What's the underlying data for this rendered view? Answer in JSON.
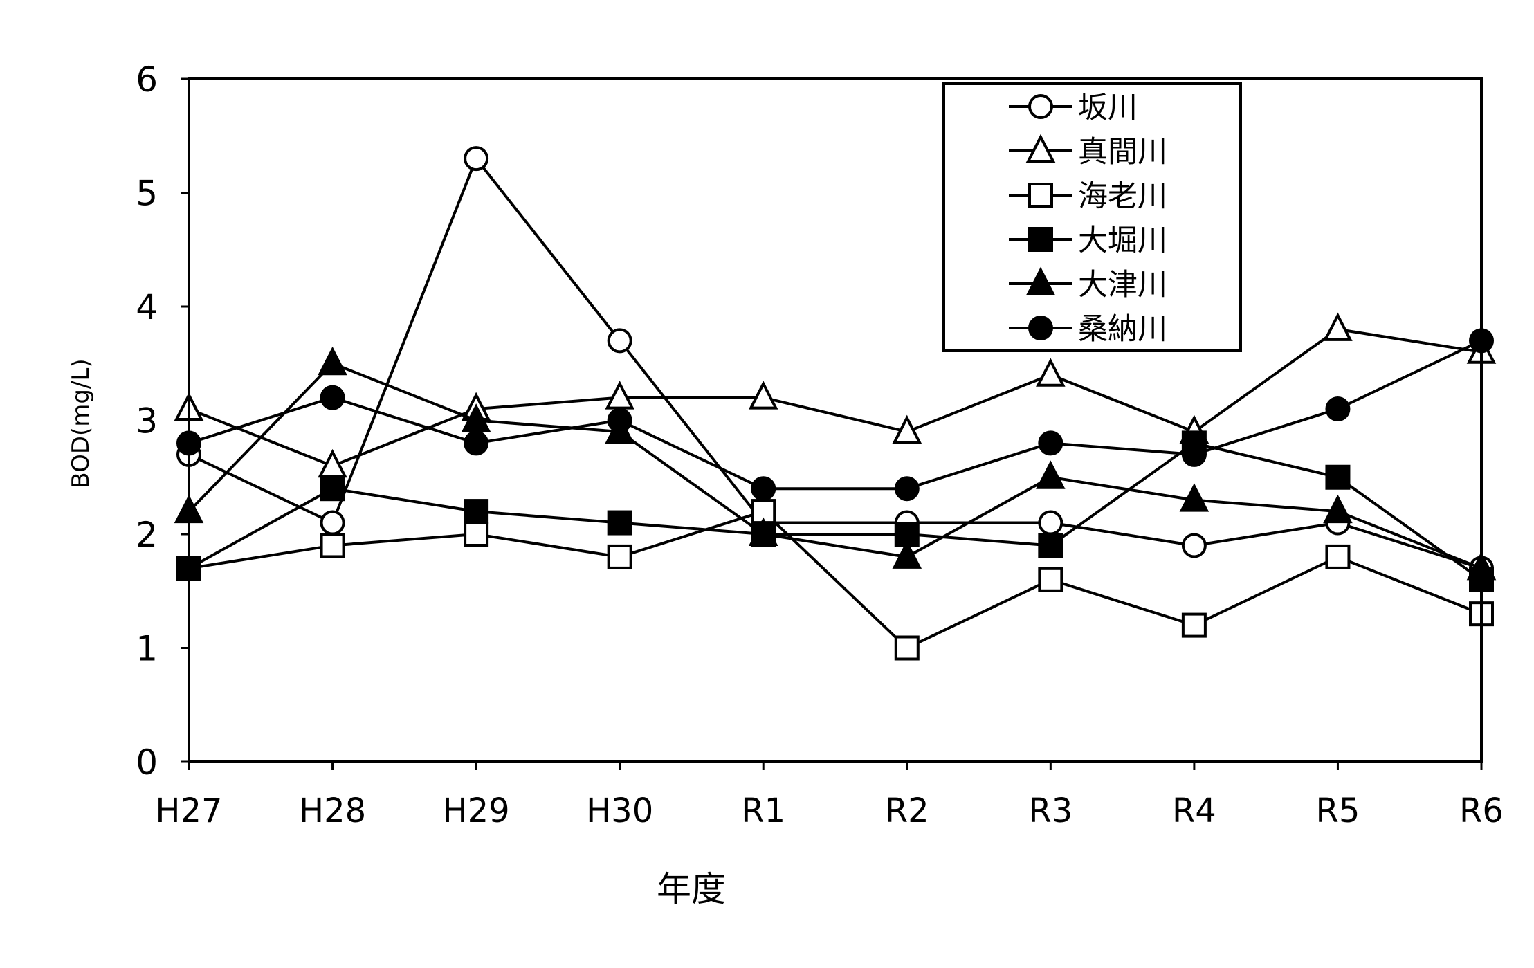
{
  "chart_data": {
    "type": "line",
    "title": "",
    "xlabel": "年度",
    "ylabel": "BOD(mg/L)",
    "ylim": [
      0,
      6
    ],
    "yticks": [
      0,
      1,
      2,
      3,
      4,
      5,
      6
    ],
    "grid": false,
    "legend_position": "top-right",
    "categories": [
      "H27",
      "H28",
      "H29",
      "H30",
      "R1",
      "R2",
      "R3",
      "R4",
      "R5",
      "R6"
    ],
    "series": [
      {
        "name": "坂川",
        "marker": "circle-open",
        "values": [
          2.7,
          2.1,
          5.3,
          3.7,
          2.1,
          2.1,
          2.1,
          1.9,
          2.1,
          1.7
        ]
      },
      {
        "name": "真間川",
        "marker": "triangle-open",
        "values": [
          3.1,
          2.6,
          3.1,
          3.2,
          3.2,
          2.9,
          3.4,
          2.9,
          3.8,
          3.6
        ]
      },
      {
        "name": "海老川",
        "marker": "square-open",
        "values": [
          1.7,
          1.9,
          2.0,
          1.8,
          2.2,
          1.0,
          1.6,
          1.2,
          1.8,
          1.3
        ]
      },
      {
        "name": "大堀川",
        "marker": "square-filled",
        "values": [
          1.7,
          2.4,
          2.2,
          2.1,
          2.0,
          2.0,
          1.9,
          2.8,
          2.5,
          1.6
        ]
      },
      {
        "name": "大津川",
        "marker": "triangle-filled",
        "values": [
          2.2,
          3.5,
          3.0,
          2.9,
          2.0,
          1.8,
          2.5,
          2.3,
          2.2,
          1.7
        ]
      },
      {
        "name": "桑納川",
        "marker": "circle-filled",
        "values": [
          2.8,
          3.2,
          2.8,
          3.0,
          2.4,
          2.4,
          2.8,
          2.7,
          3.1,
          3.7
        ]
      }
    ],
    "colors": {
      "line": "#000000",
      "background": "#ffffff"
    }
  }
}
